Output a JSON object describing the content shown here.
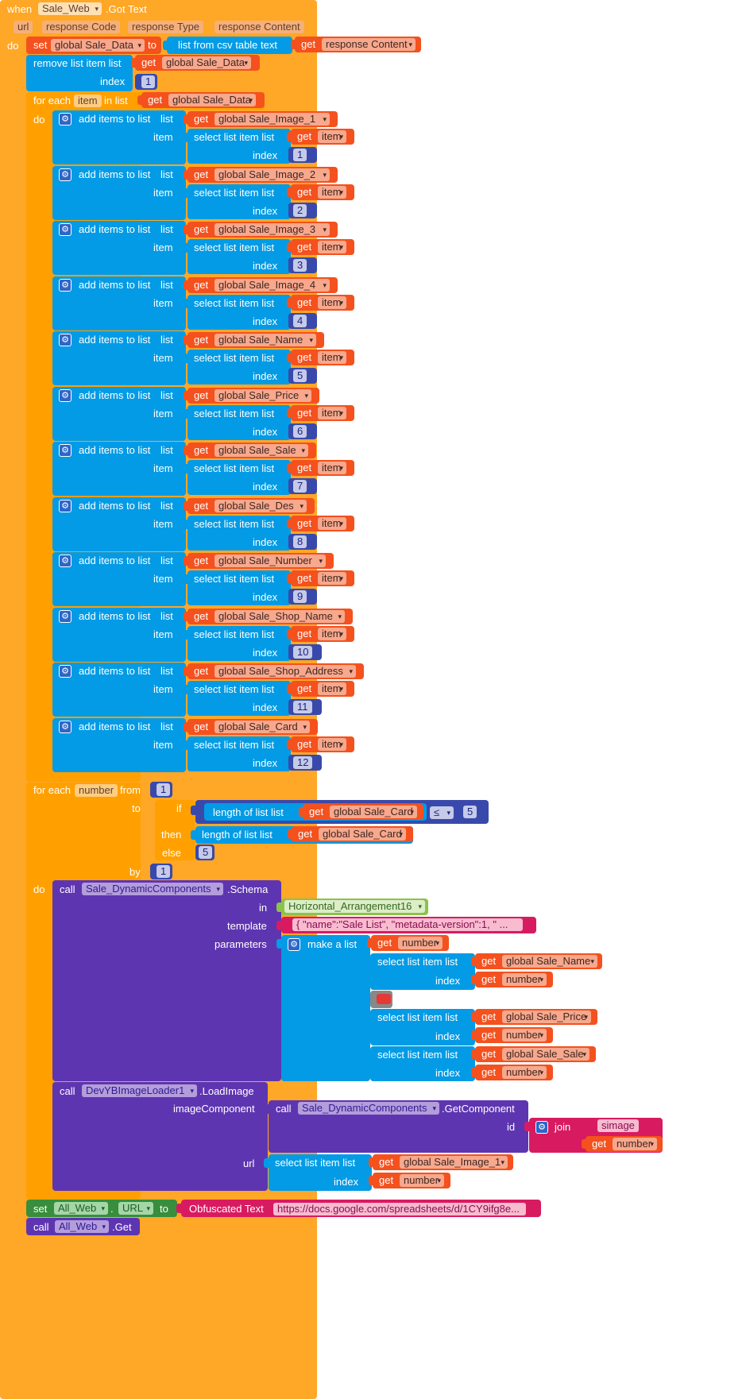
{
  "event": {
    "when": "when",
    "component": "Sale_Web",
    "event_name": ".Got Text",
    "params": [
      "url",
      "response Code",
      "response Type",
      "response Content"
    ],
    "do": "do"
  },
  "set_data": {
    "set": "set",
    "var": "global Sale_Data",
    "to": "to",
    "csv": "list from csv table  text",
    "get": "get",
    "arg": "response Content"
  },
  "remove": {
    "label": "remove list item  list",
    "get": "get",
    "var": "global Sale_Data",
    "index_label": "index",
    "index": "1"
  },
  "foreach_item": {
    "for_each": "for each",
    "var": "item",
    "in_list": "in list",
    "get": "get",
    "list": "global Sale_Data",
    "do": "do"
  },
  "adds_common": {
    "add": "add items to list",
    "list": "list",
    "item": "item",
    "select": "select list item  list",
    "index": "index",
    "get": "get",
    "item_var": "item"
  },
  "adds": [
    {
      "var": "global Sale_Image_1",
      "index": "1"
    },
    {
      "var": "global Sale_Image_2",
      "index": "2"
    },
    {
      "var": "global Sale_Image_3",
      "index": "3"
    },
    {
      "var": "global Sale_Image_4",
      "index": "4"
    },
    {
      "var": "global Sale_Name",
      "index": "5"
    },
    {
      "var": "global Sale_Price",
      "index": "6"
    },
    {
      "var": "global Sale_Sale",
      "index": "7"
    },
    {
      "var": "global Sale_Des",
      "index": "8"
    },
    {
      "var": "global Sale_Number",
      "index": "9"
    },
    {
      "var": "global Sale_Shop_Name",
      "index": "10"
    },
    {
      "var": "global Sale_Shop_Address",
      "index": "11"
    },
    {
      "var": "global Sale_Card",
      "index": "12"
    }
  ],
  "foreach_number": {
    "for_each": "for each",
    "var": "number",
    "from": "from",
    "from_val": "1",
    "to": "to",
    "if": "if",
    "length1": "length of list  list",
    "get": "get",
    "card": "global Sale_Card",
    "op": "≤",
    "five": "5",
    "then": "then",
    "length2": "length of list  list",
    "else": "else",
    "else_val": "5",
    "by": "by",
    "by_val": "1",
    "do": "do"
  },
  "schema": {
    "call": "call",
    "component": "Sale_DynamicComponents",
    "method": ".Schema",
    "in_label": "in",
    "in_val": "Horizontal_Arrangement16",
    "template_label": "template",
    "template_val": "{ \"name\":\"Sale List\", \"metadata-version\":1, \" ...",
    "parameters_label": "parameters",
    "make_list": "make a list",
    "get": "get",
    "number": "number",
    "select": "select list item  list",
    "index": "index",
    "name_var": "global Sale_Name",
    "price_var": "global Sale_Price",
    "sale_var": "global Sale_Sale"
  },
  "loadimage": {
    "call": "call",
    "component": "DevYBImageLoader1",
    "method": ".LoadImage",
    "image_component": "imageComponent",
    "call2": "call",
    "component2": "Sale_DynamicComponents",
    "method2": ".GetComponent",
    "id_label": "id",
    "join": "join",
    "simage": "simage",
    "get": "get",
    "number": "number",
    "url_label": "url",
    "select": "select list item  list",
    "img_var": "global Sale_Image_1",
    "index": "index"
  },
  "set_url": {
    "set": "set",
    "component": "All_Web",
    "prop": "URL",
    "to": "to",
    "obf": "Obfuscated Text",
    "url": "https://docs.google.com/spreadsheets/d/1CY9ifg8e..."
  },
  "call_get": {
    "call": "call",
    "component": "All_Web",
    "method": ".Get"
  },
  "colors": {
    "event": "#ffa726",
    "variable": "#f4511e",
    "list": "#039be5",
    "math": "#3949ab",
    "control": "#ffa000",
    "component": "#5e35b1",
    "text": "#d81b60",
    "setter": "#388e3c",
    "arrangement": "#8bc34a"
  }
}
